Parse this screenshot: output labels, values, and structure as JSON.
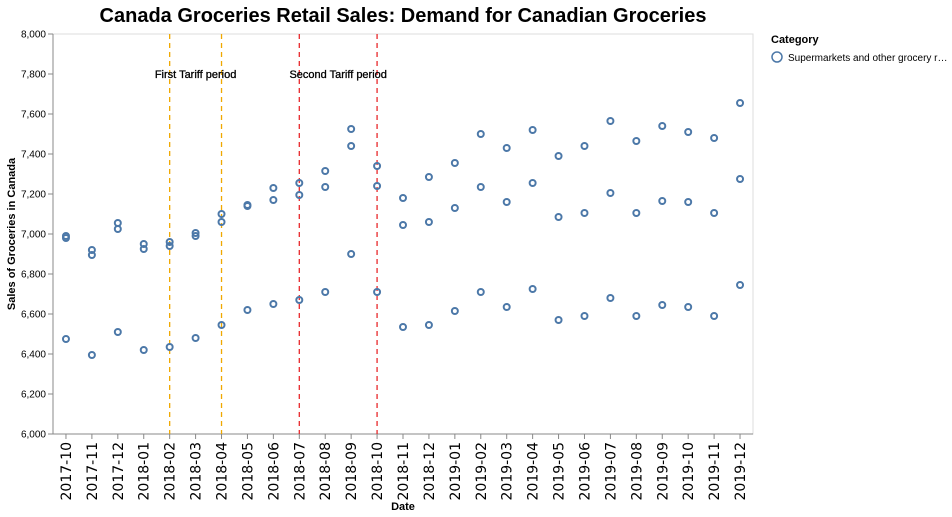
{
  "chart_data": {
    "type": "scatter",
    "title": "Canada Groceries Retail Sales: Demand for Canadian Groceries",
    "xlabel": "Date",
    "ylabel": "Sales of Groceries in Canada",
    "ylim": [
      6000,
      8000
    ],
    "yticks": [
      "6,000",
      "6,200",
      "6,400",
      "6,600",
      "6,800",
      "7,000",
      "7,200",
      "7,400",
      "7,600",
      "7,800",
      "8,000"
    ],
    "ytick_values": [
      6000,
      6200,
      6400,
      6600,
      6800,
      7000,
      7200,
      7400,
      7600,
      7800,
      8000
    ],
    "categories": [
      "2017-10",
      "2017-11",
      "2017-12",
      "2018-01",
      "2018-02",
      "2018-03",
      "2018-04",
      "2018-05",
      "2018-06",
      "2018-07",
      "2018-08",
      "2018-09",
      "2018-10",
      "2018-11",
      "2018-12",
      "2019-01",
      "2019-02",
      "2019-03",
      "2019-04",
      "2019-05",
      "2019-06",
      "2019-07",
      "2019-08",
      "2019-09",
      "2019-10",
      "2019-11",
      "2019-12"
    ],
    "grid": false,
    "legend": {
      "title": "Category",
      "placement": "top-right",
      "entries": [
        "Supermarkets and other grocery r…"
      ]
    },
    "series": [
      {
        "name": "Supermarkets and other grocery r…",
        "color": "#4c78a8",
        "points": [
          {
            "x": "2017-10",
            "y": 6990
          },
          {
            "x": "2017-10",
            "y": 6980
          },
          {
            "x": "2017-10",
            "y": 6475
          },
          {
            "x": "2017-11",
            "y": 6920
          },
          {
            "x": "2017-11",
            "y": 6895
          },
          {
            "x": "2017-11",
            "y": 6395
          },
          {
            "x": "2017-12",
            "y": 7055
          },
          {
            "x": "2017-12",
            "y": 7025
          },
          {
            "x": "2017-12",
            "y": 6510
          },
          {
            "x": "2018-01",
            "y": 6950
          },
          {
            "x": "2018-01",
            "y": 6925
          },
          {
            "x": "2018-01",
            "y": 6420
          },
          {
            "x": "2018-02",
            "y": 6960
          },
          {
            "x": "2018-02",
            "y": 6940
          },
          {
            "x": "2018-02",
            "y": 6435
          },
          {
            "x": "2018-03",
            "y": 7005
          },
          {
            "x": "2018-03",
            "y": 6990
          },
          {
            "x": "2018-03",
            "y": 6480
          },
          {
            "x": "2018-04",
            "y": 7100
          },
          {
            "x": "2018-04",
            "y": 7060
          },
          {
            "x": "2018-04",
            "y": 6545
          },
          {
            "x": "2018-05",
            "y": 7145
          },
          {
            "x": "2018-05",
            "y": 7140
          },
          {
            "x": "2018-05",
            "y": 6620
          },
          {
            "x": "2018-06",
            "y": 7230
          },
          {
            "x": "2018-06",
            "y": 7170
          },
          {
            "x": "2018-06",
            "y": 6650
          },
          {
            "x": "2018-07",
            "y": 7255
          },
          {
            "x": "2018-07",
            "y": 7195
          },
          {
            "x": "2018-07",
            "y": 6670
          },
          {
            "x": "2018-08",
            "y": 7315
          },
          {
            "x": "2018-08",
            "y": 7235
          },
          {
            "x": "2018-08",
            "y": 6710
          },
          {
            "x": "2018-09",
            "y": 7525
          },
          {
            "x": "2018-09",
            "y": 7440
          },
          {
            "x": "2018-09",
            "y": 6900
          },
          {
            "x": "2018-10",
            "y": 7340
          },
          {
            "x": "2018-10",
            "y": 7240
          },
          {
            "x": "2018-10",
            "y": 6710
          },
          {
            "x": "2018-11",
            "y": 7180
          },
          {
            "x": "2018-11",
            "y": 7045
          },
          {
            "x": "2018-11",
            "y": 6535
          },
          {
            "x": "2018-12",
            "y": 7285
          },
          {
            "x": "2018-12",
            "y": 7060
          },
          {
            "x": "2018-12",
            "y": 6545
          },
          {
            "x": "2019-01",
            "y": 7355
          },
          {
            "x": "2019-01",
            "y": 7130
          },
          {
            "x": "2019-01",
            "y": 6615
          },
          {
            "x": "2019-02",
            "y": 7500
          },
          {
            "x": "2019-02",
            "y": 7235
          },
          {
            "x": "2019-02",
            "y": 6710
          },
          {
            "x": "2019-03",
            "y": 7430
          },
          {
            "x": "2019-03",
            "y": 7160
          },
          {
            "x": "2019-03",
            "y": 6635
          },
          {
            "x": "2019-04",
            "y": 7520
          },
          {
            "x": "2019-04",
            "y": 7255
          },
          {
            "x": "2019-04",
            "y": 6725
          },
          {
            "x": "2019-05",
            "y": 7390
          },
          {
            "x": "2019-05",
            "y": 7085
          },
          {
            "x": "2019-05",
            "y": 6570
          },
          {
            "x": "2019-06",
            "y": 7440
          },
          {
            "x": "2019-06",
            "y": 7105
          },
          {
            "x": "2019-06",
            "y": 6590
          },
          {
            "x": "2019-07",
            "y": 7565
          },
          {
            "x": "2019-07",
            "y": 7205
          },
          {
            "x": "2019-07",
            "y": 6680
          },
          {
            "x": "2019-08",
            "y": 7465
          },
          {
            "x": "2019-08",
            "y": 7105
          },
          {
            "x": "2019-08",
            "y": 6590
          },
          {
            "x": "2019-09",
            "y": 7540
          },
          {
            "x": "2019-09",
            "y": 7165
          },
          {
            "x": "2019-09",
            "y": 6645
          },
          {
            "x": "2019-10",
            "y": 7510
          },
          {
            "x": "2019-10",
            "y": 7160
          },
          {
            "x": "2019-10",
            "y": 6635
          },
          {
            "x": "2019-11",
            "y": 7480
          },
          {
            "x": "2019-11",
            "y": 7105
          },
          {
            "x": "2019-11",
            "y": 6590
          },
          {
            "x": "2019-12",
            "y": 7655
          },
          {
            "x": "2019-12",
            "y": 7275
          },
          {
            "x": "2019-12",
            "y": 6745
          }
        ]
      }
    ],
    "rules": [
      {
        "x": "2018-02",
        "color": "#f0a800",
        "style": "dashed"
      },
      {
        "x": "2018-04",
        "color": "#f0a800",
        "style": "dashed"
      },
      {
        "x": "2018-07",
        "color": "#e8282b",
        "style": "dashed"
      },
      {
        "x": "2018-10",
        "color": "#e8282b",
        "style": "dashed"
      }
    ],
    "annotations": [
      {
        "text": "First Tariff period",
        "x": "2018-03",
        "y": 7800
      },
      {
        "text": "Second Tariff period",
        "x": "2018-08.5",
        "y": 7800
      }
    ]
  }
}
